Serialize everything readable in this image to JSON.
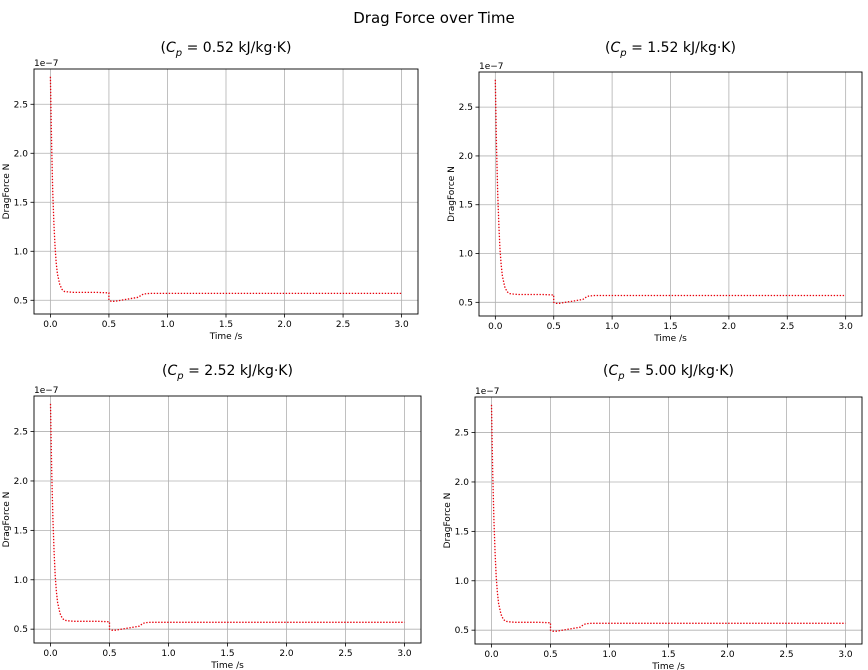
{
  "figure": {
    "suptitle": "Drag Force over Time"
  },
  "chart_data": [
    {
      "type": "line",
      "title_pre": "(",
      "title_sym": "C",
      "title_sub": "p",
      "title_post": " = 0.52 kJ/kg·K)",
      "xlabel": "Time /s",
      "ylabel": "DragForce N",
      "y_offset_label": "1e−7",
      "xlim": [
        -0.14,
        3.14
      ],
      "ylim": [
        0.36,
        2.86
      ],
      "xticks": [
        0.0,
        0.5,
        1.0,
        1.5,
        2.0,
        2.5,
        3.0
      ],
      "xtick_labels": [
        "0.0",
        "0.5",
        "1.0",
        "1.5",
        "2.0",
        "2.5",
        "3.0"
      ],
      "yticks": [
        0.5,
        1.0,
        1.5,
        2.0,
        2.5
      ],
      "ytick_labels": [
        "0.5",
        "1.0",
        "1.5",
        "2.0",
        "2.5"
      ],
      "grid": true,
      "line_color": "#e8000b",
      "line_style": "dotted",
      "series": [
        {
          "x": [
            0.0,
            0.01,
            0.02,
            0.03,
            0.04,
            0.05,
            0.06,
            0.08,
            0.1,
            0.12,
            0.15,
            0.2,
            0.3,
            0.4,
            0.5,
            0.5,
            0.52,
            0.55,
            0.6,
            0.65,
            0.7,
            0.75,
            0.78,
            0.8,
            0.85,
            1.0,
            1.5,
            2.0,
            2.5,
            3.0
          ],
          "y": [
            2.78,
            2.1,
            1.62,
            1.28,
            1.04,
            0.88,
            0.77,
            0.66,
            0.61,
            0.59,
            0.585,
            0.58,
            0.58,
            0.58,
            0.575,
            0.5,
            0.49,
            0.49,
            0.5,
            0.51,
            0.52,
            0.53,
            0.555,
            0.565,
            0.57,
            0.57,
            0.57,
            0.57,
            0.57,
            0.57
          ]
        }
      ]
    },
    {
      "type": "line",
      "title_pre": "(",
      "title_sym": "C",
      "title_sub": "p",
      "title_post": " = 1.52 kJ/kg·K)",
      "xlabel": "Time /s",
      "ylabel": "DragForce N",
      "y_offset_label": "1e−7",
      "xlim": [
        -0.14,
        3.14
      ],
      "ylim": [
        0.36,
        2.86
      ],
      "xticks": [
        0.0,
        0.5,
        1.0,
        1.5,
        2.0,
        2.5,
        3.0
      ],
      "xtick_labels": [
        "0.0",
        "0.5",
        "1.0",
        "1.5",
        "2.0",
        "2.5",
        "3.0"
      ],
      "yticks": [
        0.5,
        1.0,
        1.5,
        2.0,
        2.5
      ],
      "ytick_labels": [
        "0.5",
        "1.0",
        "1.5",
        "2.0",
        "2.5"
      ],
      "grid": true,
      "line_color": "#e8000b",
      "line_style": "dotted",
      "series": [
        {
          "x": [
            0.0,
            0.01,
            0.02,
            0.03,
            0.04,
            0.05,
            0.06,
            0.08,
            0.1,
            0.12,
            0.15,
            0.2,
            0.3,
            0.4,
            0.5,
            0.5,
            0.52,
            0.55,
            0.6,
            0.65,
            0.7,
            0.75,
            0.78,
            0.8,
            0.85,
            1.0,
            1.5,
            2.0,
            2.5,
            3.0
          ],
          "y": [
            2.78,
            2.1,
            1.62,
            1.28,
            1.04,
            0.88,
            0.77,
            0.66,
            0.61,
            0.59,
            0.585,
            0.58,
            0.58,
            0.58,
            0.575,
            0.5,
            0.49,
            0.49,
            0.5,
            0.51,
            0.52,
            0.53,
            0.555,
            0.565,
            0.57,
            0.57,
            0.57,
            0.57,
            0.57,
            0.57
          ]
        }
      ]
    },
    {
      "type": "line",
      "title_pre": "(",
      "title_sym": "C",
      "title_sub": "p",
      "title_post": " = 2.52 kJ/kg·K)",
      "xlabel": "Time /s",
      "ylabel": "DragForce N",
      "y_offset_label": "1e−7",
      "xlim": [
        -0.14,
        3.14
      ],
      "ylim": [
        0.36,
        2.86
      ],
      "xticks": [
        0.0,
        0.5,
        1.0,
        1.5,
        2.0,
        2.5,
        3.0
      ],
      "xtick_labels": [
        "0.0",
        "0.5",
        "1.0",
        "1.5",
        "2.0",
        "2.5",
        "3.0"
      ],
      "yticks": [
        0.5,
        1.0,
        1.5,
        2.0,
        2.5
      ],
      "ytick_labels": [
        "0.5",
        "1.0",
        "1.5",
        "2.0",
        "2.5"
      ],
      "grid": true,
      "line_color": "#e8000b",
      "line_style": "dotted",
      "series": [
        {
          "x": [
            0.0,
            0.01,
            0.02,
            0.03,
            0.04,
            0.05,
            0.06,
            0.08,
            0.1,
            0.12,
            0.15,
            0.2,
            0.3,
            0.4,
            0.5,
            0.5,
            0.52,
            0.55,
            0.6,
            0.65,
            0.7,
            0.75,
            0.78,
            0.8,
            0.85,
            1.0,
            1.5,
            2.0,
            2.5,
            3.0
          ],
          "y": [
            2.78,
            2.1,
            1.62,
            1.28,
            1.04,
            0.88,
            0.77,
            0.66,
            0.61,
            0.59,
            0.585,
            0.58,
            0.58,
            0.58,
            0.575,
            0.5,
            0.49,
            0.49,
            0.5,
            0.51,
            0.52,
            0.53,
            0.555,
            0.565,
            0.57,
            0.57,
            0.57,
            0.57,
            0.57,
            0.57
          ]
        }
      ]
    },
    {
      "type": "line",
      "title_pre": "(",
      "title_sym": "C",
      "title_sub": "p",
      "title_post": " = 5.00 kJ/kg·K)",
      "xlabel": "Time /s",
      "ylabel": "DragForce N",
      "y_offset_label": "1e−7",
      "xlim": [
        -0.14,
        3.14
      ],
      "ylim": [
        0.36,
        2.86
      ],
      "xticks": [
        0.0,
        0.5,
        1.0,
        1.5,
        2.0,
        2.5,
        3.0
      ],
      "xtick_labels": [
        "0.0",
        "0.5",
        "1.0",
        "1.5",
        "2.0",
        "2.5",
        "3.0"
      ],
      "yticks": [
        0.5,
        1.0,
        1.5,
        2.0,
        2.5
      ],
      "ytick_labels": [
        "0.5",
        "1.0",
        "1.5",
        "2.0",
        "2.5"
      ],
      "grid": true,
      "line_color": "#e8000b",
      "line_style": "dotted",
      "series": [
        {
          "x": [
            0.0,
            0.01,
            0.02,
            0.03,
            0.04,
            0.05,
            0.06,
            0.08,
            0.1,
            0.12,
            0.15,
            0.2,
            0.3,
            0.4,
            0.5,
            0.5,
            0.52,
            0.55,
            0.6,
            0.65,
            0.7,
            0.75,
            0.78,
            0.8,
            0.85,
            1.0,
            1.5,
            2.0,
            2.5,
            3.0
          ],
          "y": [
            2.78,
            2.1,
            1.62,
            1.28,
            1.04,
            0.88,
            0.77,
            0.66,
            0.61,
            0.59,
            0.585,
            0.58,
            0.58,
            0.58,
            0.575,
            0.5,
            0.49,
            0.49,
            0.5,
            0.51,
            0.52,
            0.53,
            0.555,
            0.565,
            0.57,
            0.57,
            0.57,
            0.57,
            0.57,
            0.57
          ]
        }
      ]
    }
  ]
}
